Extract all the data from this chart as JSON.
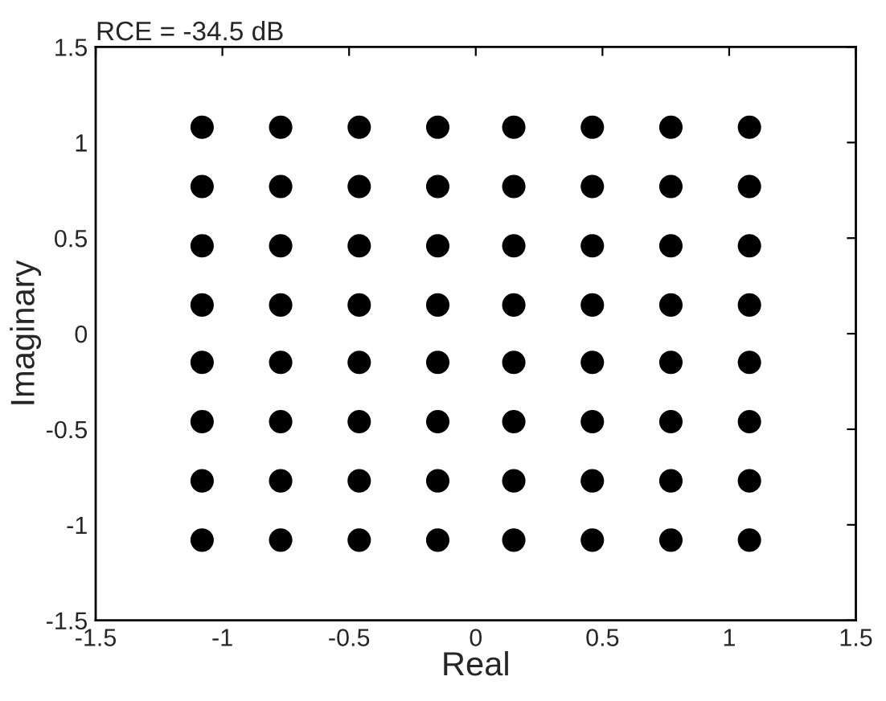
{
  "chart_data": {
    "type": "scatter",
    "title": "RCE = -34.5 dB",
    "xlabel": "Real",
    "ylabel": "Imaginary",
    "x": [
      -1.08,
      -0.77,
      -0.46,
      -0.15,
      0.15,
      0.46,
      0.77,
      1.08,
      -1.08,
      -0.77,
      -0.46,
      -0.15,
      0.15,
      0.46,
      0.77,
      1.08,
      -1.08,
      -0.77,
      -0.46,
      -0.15,
      0.15,
      0.46,
      0.77,
      1.08,
      -1.08,
      -0.77,
      -0.46,
      -0.15,
      0.15,
      0.46,
      0.77,
      1.08,
      -1.08,
      -0.77,
      -0.46,
      -0.15,
      0.15,
      0.46,
      0.77,
      1.08,
      -1.08,
      -0.77,
      -0.46,
      -0.15,
      0.15,
      0.46,
      0.77,
      1.08,
      -1.08,
      -0.77,
      -0.46,
      -0.15,
      0.15,
      0.46,
      0.77,
      1.08,
      -1.08,
      -0.77,
      -0.46,
      -0.15,
      0.15,
      0.46,
      0.77,
      1.08
    ],
    "values": [
      1.08,
      1.08,
      1.08,
      1.08,
      1.08,
      1.08,
      1.08,
      1.08,
      0.77,
      0.77,
      0.77,
      0.77,
      0.77,
      0.77,
      0.77,
      0.77,
      0.46,
      0.46,
      0.46,
      0.46,
      0.46,
      0.46,
      0.46,
      0.46,
      0.15,
      0.15,
      0.15,
      0.15,
      0.15,
      0.15,
      0.15,
      0.15,
      -0.15,
      -0.15,
      -0.15,
      -0.15,
      -0.15,
      -0.15,
      -0.15,
      -0.15,
      -0.46,
      -0.46,
      -0.46,
      -0.46,
      -0.46,
      -0.46,
      -0.46,
      -0.46,
      -0.77,
      -0.77,
      -0.77,
      -0.77,
      -0.77,
      -0.77,
      -0.77,
      -0.77,
      -1.08,
      -1.08,
      -1.08,
      -1.08,
      -1.08,
      -1.08,
      -1.08,
      -1.08
    ],
    "color": "#000000",
    "marker": "circle",
    "xlim": [
      -1.5,
      1.5
    ],
    "xticks": [
      -1.5,
      -1,
      -0.5,
      0,
      0.5,
      1,
      1.5
    ],
    "ylim": [
      -1.5,
      1.5
    ],
    "yticks": [
      -1.5,
      -1,
      -0.5,
      0,
      0.5,
      1,
      1.5
    ],
    "grid": false,
    "legend": false
  }
}
